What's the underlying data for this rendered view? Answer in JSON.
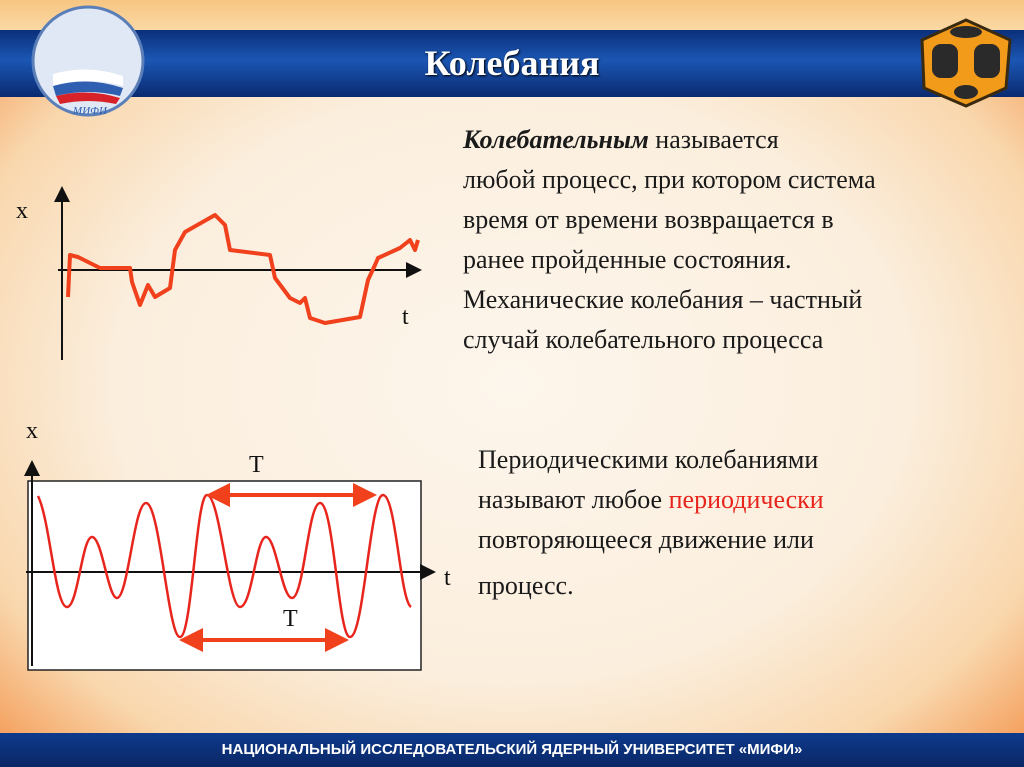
{
  "header": {
    "title": "Колебания"
  },
  "definition": {
    "term": "Колебательным",
    "lines": [
      " называется",
      "любой процесс, при котором система",
      "время от времени возвращается в",
      "ранее пройденные состояния.",
      "Механические колебания – частный",
      "случай колебательного процесса"
    ]
  },
  "periodic": {
    "line1": "Периодическими колебаниями",
    "line2_a": "называют любое ",
    "line2_b": "периодически",
    "line3": "повторяющееся движение или",
    "line4": "процесс."
  },
  "graph1": {
    "ylabel": "x",
    "xlabel": "t"
  },
  "graph2": {
    "ylabel": "x",
    "xlabel": "t",
    "period_label_top": "T",
    "period_label_bottom": "T"
  },
  "footer": {
    "text": "НАЦИОНАЛЬНЫЙ ИССЛЕДОВАТЕЛЬСКИЙ ЯДЕРНЫЙ УНИВЕРСИТЕТ «МИФИ»"
  },
  "logo": {
    "text": "МИФИ"
  },
  "colors": {
    "curve": "#f0401c",
    "header": "#1b56b3",
    "accent": "#e8251d"
  }
}
